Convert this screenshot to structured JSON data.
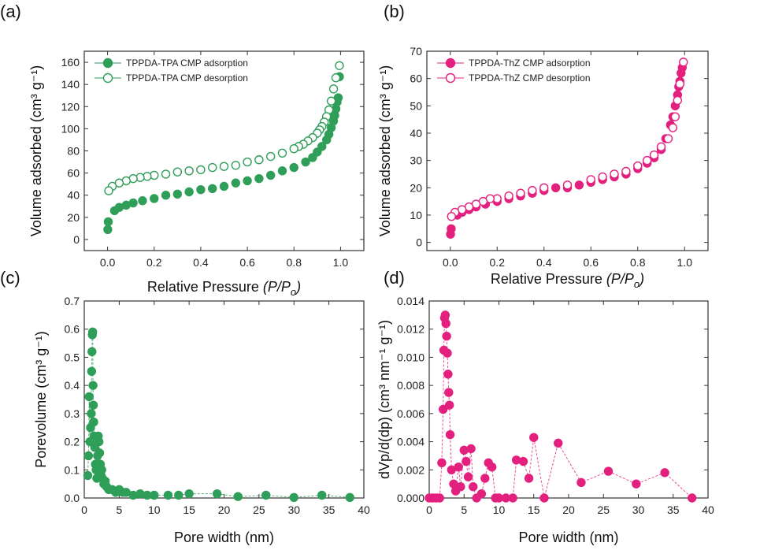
{
  "colors": {
    "green": "#2e9e58",
    "pink": "#e3207e",
    "axis": "#333333"
  },
  "chart_data": [
    {
      "panel": "(a)",
      "type": "scatter",
      "xlabel_main": "Relative Pressure ",
      "xlabel_italic": "(P/P",
      "xlabel_sub": "o",
      "xlabel_close": ")",
      "ylabel": "Volume adsorbed (cm³ g⁻¹)",
      "xlim": [
        -0.1,
        1.1
      ],
      "ylim": [
        -10,
        170
      ],
      "xticks": [
        0.0,
        0.2,
        0.4,
        0.6,
        0.8,
        1.0
      ],
      "xtick_labels": [
        "0.0",
        "0.2",
        "0.4",
        "0.6",
        "0.8",
        "1.0"
      ],
      "yticks": [
        0,
        20,
        40,
        60,
        80,
        100,
        120,
        140,
        160
      ],
      "ytick_labels": [
        "0",
        "20",
        "40",
        "60",
        "80",
        "100",
        "120",
        "140",
        "160"
      ],
      "legend": "top-left",
      "color": "#2e9e58",
      "series": [
        {
          "name": "TPPDA-TPA CMP adsorption",
          "filled": true,
          "x": [
            0.001,
            0.003,
            0.03,
            0.05,
            0.08,
            0.11,
            0.15,
            0.2,
            0.25,
            0.3,
            0.35,
            0.4,
            0.45,
            0.5,
            0.55,
            0.6,
            0.65,
            0.7,
            0.75,
            0.8,
            0.85,
            0.88,
            0.9,
            0.92,
            0.94,
            0.95,
            0.96,
            0.97,
            0.975,
            0.98,
            0.985,
            0.99,
            0.995
          ],
          "y": [
            9,
            16,
            26,
            29,
            31,
            33,
            35,
            37,
            40,
            41,
            43,
            45,
            46,
            48,
            51,
            53,
            55,
            58,
            62,
            65,
            70,
            74,
            79,
            84,
            90,
            95,
            101,
            107,
            112,
            118,
            124,
            128,
            147
          ]
        },
        {
          "name": "TPPDA-TPA CMP desorption",
          "filled": false,
          "x": [
            0.995,
            0.98,
            0.97,
            0.96,
            0.95,
            0.94,
            0.93,
            0.92,
            0.91,
            0.9,
            0.88,
            0.86,
            0.84,
            0.82,
            0.8,
            0.75,
            0.7,
            0.65,
            0.6,
            0.55,
            0.5,
            0.45,
            0.4,
            0.35,
            0.3,
            0.25,
            0.2,
            0.17,
            0.14,
            0.11,
            0.08,
            0.05,
            0.02,
            0.005
          ],
          "y": [
            157,
            146,
            136,
            125,
            117,
            111,
            106,
            102,
            99,
            96,
            92,
            89,
            86,
            84,
            82,
            78,
            75,
            72,
            70,
            67,
            66,
            65,
            63,
            62,
            61,
            59,
            58,
            57,
            56,
            55,
            53,
            51,
            48,
            44
          ]
        }
      ]
    },
    {
      "panel": "(b)",
      "type": "scatter",
      "xlabel_main": "Relative Pressure ",
      "xlabel_italic": "(P/P",
      "xlabel_sub": "o",
      "xlabel_close": ")",
      "ylabel": "Volume adsorbed (cm³ g⁻¹)",
      "xlim": [
        -0.1,
        1.1
      ],
      "ylim": [
        -3,
        70
      ],
      "xticks": [
        0.0,
        0.2,
        0.4,
        0.6,
        0.8,
        1.0
      ],
      "xtick_labels": [
        "0.0",
        "0.2",
        "0.4",
        "0.6",
        "0.8",
        "1.0"
      ],
      "yticks": [
        0,
        10,
        20,
        30,
        40,
        50,
        60,
        70
      ],
      "ytick_labels": [
        "0",
        "10",
        "20",
        "30",
        "40",
        "50",
        "60",
        "70"
      ],
      "legend": "top-left",
      "color": "#e3207e",
      "series": [
        {
          "name": "TPPDA-ThZ CMP adsorption",
          "filled": true,
          "x": [
            0.001,
            0.004,
            0.03,
            0.05,
            0.08,
            0.11,
            0.15,
            0.2,
            0.25,
            0.3,
            0.35,
            0.4,
            0.45,
            0.5,
            0.55,
            0.6,
            0.65,
            0.7,
            0.75,
            0.8,
            0.84,
            0.87,
            0.9,
            0.92,
            0.94,
            0.95,
            0.96,
            0.97,
            0.975,
            0.98,
            0.985,
            0.99
          ],
          "y": [
            3,
            5,
            10,
            11,
            12,
            13,
            14,
            15,
            16,
            17,
            18,
            19,
            20,
            20,
            21,
            22,
            23,
            24,
            25,
            27,
            29,
            31,
            34,
            38,
            43,
            46,
            50,
            54,
            57,
            59,
            62,
            64
          ]
        },
        {
          "name": "TPPDA-ThZ CMP desorption",
          "filled": false,
          "x": [
            0.995,
            0.98,
            0.97,
            0.96,
            0.95,
            0.93,
            0.9,
            0.87,
            0.84,
            0.8,
            0.75,
            0.7,
            0.65,
            0.6,
            0.5,
            0.4,
            0.35,
            0.3,
            0.25,
            0.2,
            0.17,
            0.14,
            0.11,
            0.08,
            0.05,
            0.02,
            0.005
          ],
          "y": [
            66,
            58,
            52,
            46,
            42,
            38,
            35,
            32,
            30,
            28,
            26,
            25,
            24,
            23,
            21,
            20,
            19,
            18,
            17,
            16,
            16,
            15,
            14,
            13,
            12,
            11,
            9.5
          ]
        }
      ]
    },
    {
      "panel": "(c)",
      "type": "line",
      "xlabel": "Pore width (nm)",
      "ylabel": "Porevolume (cm³ g⁻¹)",
      "xlim": [
        0,
        40
      ],
      "ylim": [
        0,
        0.7
      ],
      "xticks": [
        0,
        5,
        10,
        15,
        20,
        25,
        30,
        35,
        40
      ],
      "xtick_labels": [
        "0",
        "5",
        "10",
        "15",
        "20",
        "25",
        "30",
        "35",
        "40"
      ],
      "yticks": [
        0.0,
        0.1,
        0.2,
        0.3,
        0.4,
        0.5,
        0.6,
        0.7
      ],
      "ytick_labels": [
        "0.0",
        "0.1",
        "0.2",
        "0.3",
        "0.4",
        "0.5",
        "0.6",
        "0.7"
      ],
      "color": "#2e9e58",
      "series": [
        {
          "filled": true,
          "x": [
            0.5,
            0.6,
            0.7,
            0.8,
            0.9,
            1.0,
            1.05,
            1.1,
            1.15,
            1.2,
            1.25,
            1.3,
            1.35,
            1.4,
            1.5,
            1.6,
            1.7,
            1.8,
            1.9,
            2.0,
            2.1,
            2.2,
            2.3,
            2.4,
            2.5,
            2.6,
            2.8,
            3.0,
            3.2,
            3.5,
            4.0,
            4.5,
            5.0,
            5.5,
            6.0,
            7.0,
            8.0,
            9.0,
            10.0,
            12.0,
            13.5,
            15.0,
            19.0,
            22.0,
            26.0,
            30.0,
            34.0,
            38.0
          ],
          "y": [
            0.08,
            0.15,
            0.36,
            0.2,
            0.25,
            0.3,
            0.45,
            0.52,
            0.58,
            0.59,
            0.4,
            0.33,
            0.27,
            0.22,
            0.18,
            0.12,
            0.1,
            0.07,
            0.15,
            0.22,
            0.2,
            0.16,
            0.12,
            0.08,
            0.1,
            0.07,
            0.05,
            0.06,
            0.04,
            0.03,
            0.03,
            0.02,
            0.03,
            0.02,
            0.02,
            0.01,
            0.015,
            0.01,
            0.01,
            0.01,
            0.01,
            0.015,
            0.015,
            0.005,
            0.01,
            0.002,
            0.01,
            0.002
          ]
        }
      ]
    },
    {
      "panel": "(d)",
      "type": "line",
      "xlabel": "Pore width (nm)",
      "ylabel": "dVp/d(dp) (cm³ nm⁻¹ g⁻¹)",
      "xlim": [
        0,
        40
      ],
      "ylim": [
        0,
        0.014
      ],
      "xticks": [
        0,
        5,
        10,
        15,
        20,
        25,
        30,
        35,
        40
      ],
      "xtick_labels": [
        "0",
        "5",
        "10",
        "15",
        "20",
        "25",
        "30",
        "35",
        "40"
      ],
      "yticks": [
        0.0,
        0.002,
        0.004,
        0.006,
        0.008,
        0.01,
        0.012,
        0.014
      ],
      "ytick_labels": [
        "0.000",
        "0.002",
        "0.004",
        "0.006",
        "0.008",
        "0.010",
        "0.012",
        "0.014"
      ],
      "color": "#e3207e",
      "series": [
        {
          "filled": true,
          "x": [
            0,
            0.5,
            1.0,
            1.5,
            1.8,
            2.0,
            2.1,
            2.2,
            2.3,
            2.4,
            2.5,
            2.6,
            2.7,
            2.8,
            2.9,
            3.0,
            3.2,
            3.5,
            3.8,
            4.2,
            4.5,
            5.0,
            5.3,
            5.6,
            6.0,
            6.3,
            6.8,
            7.5,
            8.0,
            8.5,
            9.0,
            9.5,
            10.0,
            11.0,
            12.0,
            12.5,
            13.5,
            14.3,
            15.0,
            16.5,
            18.5,
            21.8,
            25.7,
            29.7,
            33.8,
            37.7
          ],
          "y": [
            0,
            0,
            0,
            0,
            0.0025,
            0.0063,
            0.0105,
            0.0128,
            0.013,
            0.0124,
            0.0115,
            0.0103,
            0.0088,
            0.0075,
            0.0066,
            0.0045,
            0.002,
            0.001,
            0.0005,
            0.0022,
            0.0008,
            0.0034,
            0.0026,
            0.0015,
            0.0035,
            0.0008,
            0,
            0.0003,
            0.0014,
            0.0025,
            0.0022,
            0,
            0,
            0,
            0,
            0.0027,
            0.0026,
            0.0014,
            0.0043,
            0,
            0.0039,
            0.0011,
            0.0019,
            0.001,
            0.0018,
            0
          ]
        }
      ]
    }
  ]
}
